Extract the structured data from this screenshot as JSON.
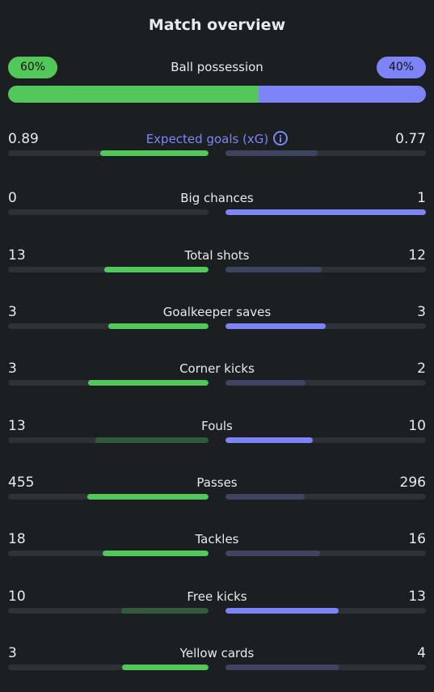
{
  "title": "Match overview",
  "colors": {
    "home_strong": "#52c75a",
    "home_weak": "#335a3a",
    "away_strong": "#7c84f7",
    "away_weak": "#3f4460",
    "track": "#2c3236"
  },
  "possession": {
    "label": "Ball possession",
    "home": "60%",
    "away": "40%",
    "home_fraction": 0.6,
    "away_fraction": 0.4
  },
  "stats": [
    {
      "label": "Expected goals (xG)",
      "home": "0.89",
      "away": "0.77",
      "home_fill": 0.54,
      "away_fill": 0.46,
      "home_strong": true,
      "away_strong": false,
      "highlight": true,
      "icon": "info-icon"
    },
    {
      "label": "Big chances",
      "home": "0",
      "away": "1",
      "home_fill": 0.0,
      "away_fill": 1.0,
      "home_strong": true,
      "away_strong": true
    },
    {
      "label": "Total shots",
      "home": "13",
      "away": "12",
      "home_fill": 0.52,
      "away_fill": 0.48,
      "home_strong": true,
      "away_strong": false
    },
    {
      "label": "Goalkeeper saves",
      "home": "3",
      "away": "3",
      "home_fill": 0.5,
      "away_fill": 0.5,
      "home_strong": true,
      "away_strong": true
    },
    {
      "label": "Corner kicks",
      "home": "3",
      "away": "2",
      "home_fill": 0.6,
      "away_fill": 0.4,
      "home_strong": true,
      "away_strong": false
    },
    {
      "label": "Fouls",
      "home": "13",
      "away": "10",
      "home_fill": 0.565,
      "away_fill": 0.435,
      "home_strong": false,
      "away_strong": true
    },
    {
      "label": "Passes",
      "home": "455",
      "away": "296",
      "home_fill": 0.606,
      "away_fill": 0.394,
      "home_strong": true,
      "away_strong": false
    },
    {
      "label": "Tackles",
      "home": "18",
      "away": "16",
      "home_fill": 0.53,
      "away_fill": 0.47,
      "home_strong": true,
      "away_strong": false
    },
    {
      "label": "Free kicks",
      "home": "10",
      "away": "13",
      "home_fill": 0.435,
      "away_fill": 0.565,
      "home_strong": false,
      "away_strong": true
    },
    {
      "label": "Yellow cards",
      "home": "3",
      "away": "4",
      "home_fill": 0.43,
      "away_fill": 0.57,
      "home_strong": true,
      "away_strong": false
    }
  ]
}
